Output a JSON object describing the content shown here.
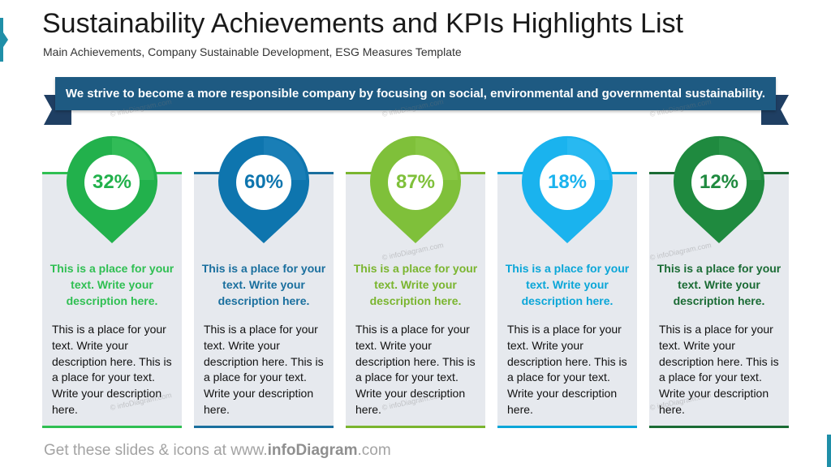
{
  "title": "Sustainability Achievements and KPIs Highlights List",
  "subtitle": "Main Achievements, Company Sustainable Development, ESG Measures Template",
  "banner": "We strive to become a more responsible company by focusing on social, environmental and governmental sustainability.",
  "cards": [
    {
      "percent": "32%",
      "heading": "This is a place for your text. Write your description here.",
      "body": "This is a place for your text. Write your description here. This is a place for your text. Write your description here.",
      "color": "#2fbf52",
      "pin_color": "#22b14c",
      "pin_light": "#4cd06e"
    },
    {
      "percent": "60%",
      "heading": "This is a place for your text. Write your description here.",
      "body": "This is a place for your text. Write your description here. This is a place for your text. Write your description here.",
      "color": "#1a6f9e",
      "pin_color": "#0e75ae",
      "pin_light": "#2f8fc5"
    },
    {
      "percent": "87%",
      "heading": "This is a place for your text. Write your description here.",
      "body": "This is a place for your text. Write your description here. This is a place for your text. Write your description here.",
      "color": "#7ab52f",
      "pin_color": "#7fc03a",
      "pin_light": "#99d35a"
    },
    {
      "percent": "18%",
      "heading": "This is a place for your text. Write your description here.",
      "body": "This is a place for your text. Write your description here. This is a place for your text. Write your description here.",
      "color": "#0aa6d8",
      "pin_color": "#1ab3ee",
      "pin_light": "#46c7f5"
    },
    {
      "percent": "12%",
      "heading": "This is a place for your text. Write your description here.",
      "body": "This is a place for your text. Write your description here. This is a place for your text. Write your description here.",
      "color": "#1a6b34",
      "pin_color": "#1f8a3f",
      "pin_light": "#36a356"
    }
  ],
  "footer": {
    "prefix": "Get these slides & icons at www.",
    "brand": "infoDiagram",
    "suffix": ".com"
  },
  "watermark": "© infoDiagram.com"
}
